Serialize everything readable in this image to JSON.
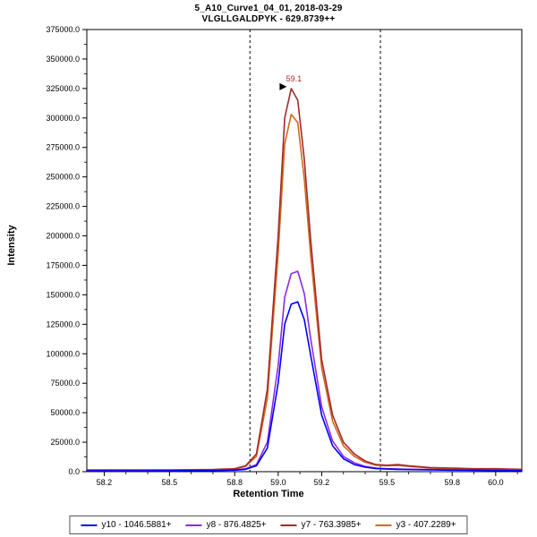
{
  "chart_data": {
    "type": "line",
    "title": "5_A10_Curve1_04_01, 2018-03-29",
    "subtitle": "VLGLLGALDPYK - 629.8739++",
    "xlabel": "Retention Time",
    "ylabel": "Intensity",
    "xlim": [
      58.12,
      60.12
    ],
    "ylim": [
      0,
      375000
    ],
    "grid": false,
    "legend_position": "bottom",
    "x_ticks": [
      58.2,
      58.5,
      58.8,
      59.0,
      59.2,
      59.5,
      59.8,
      60.0
    ],
    "x_tick_labels": [
      "58.2",
      "58.5",
      "58.8",
      "59.0",
      "59.2",
      "59.5",
      "59.8",
      "60.0"
    ],
    "x_minor_step": 0.1,
    "y_ticks": [
      0,
      25000,
      50000,
      75000,
      100000,
      125000,
      150000,
      175000,
      200000,
      225000,
      250000,
      275000,
      300000,
      325000,
      350000,
      375000
    ],
    "y_tick_labels": [
      "0.0",
      "25000.0",
      "50000.0",
      "75000.0",
      "100000.0",
      "125000.0",
      "150000.0",
      "175000.0",
      "200000.0",
      "225000.0",
      "250000.0",
      "275000.0",
      "300000.0",
      "325000.0",
      "350000.0",
      "375000.0"
    ],
    "y_minor_step": 12500,
    "peak_boundaries": [
      58.87,
      59.47
    ],
    "peak_annotation": {
      "label": "59.1",
      "x": 59.06,
      "y": 328000,
      "color": "#A52A2A"
    },
    "x": [
      58.12,
      58.3,
      58.5,
      58.7,
      58.8,
      58.85,
      58.9,
      58.95,
      59.0,
      59.03,
      59.06,
      59.09,
      59.12,
      59.15,
      59.2,
      59.25,
      59.3,
      59.35,
      59.4,
      59.45,
      59.5,
      59.55,
      59.6,
      59.7,
      59.8,
      59.9,
      60.0,
      60.12
    ],
    "series": [
      {
        "name": "y10",
        "legend_label": "y10 - 1046.5881+",
        "color": "#0000FF",
        "values": [
          700,
          700,
          800,
          1000,
          1300,
          2000,
          5000,
          20000,
          75000,
          125000,
          142000,
          144000,
          129000,
          98000,
          48000,
          22000,
          11000,
          6000,
          3800,
          2600,
          2200,
          2000,
          1800,
          1500,
          1300,
          1200,
          1000,
          900
        ]
      },
      {
        "name": "y8",
        "legend_label": "y8 - 876.4825+",
        "color": "#8A2BE2",
        "values": [
          800,
          800,
          900,
          1100,
          1500,
          2500,
          6000,
          25000,
          90000,
          148000,
          168000,
          170000,
          151000,
          112000,
          55000,
          26000,
          13000,
          7500,
          4500,
          3000,
          2500,
          2200,
          2000,
          1800,
          1500,
          1300,
          1200,
          1000
        ]
      },
      {
        "name": "y7",
        "legend_label": "y7 - 763.3985+",
        "color": "#A52A2A",
        "values": [
          1500,
          1500,
          1500,
          1800,
          2500,
          5000,
          15000,
          70000,
          200000,
          300000,
          325000,
          315000,
          265000,
          195000,
          95000,
          48000,
          25000,
          15000,
          9000,
          6000,
          5500,
          6000,
          5000,
          3500,
          3000,
          2500,
          2500,
          2000
        ]
      },
      {
        "name": "y3",
        "legend_label": "y3 - 407.2289+",
        "color": "#D2691E",
        "values": [
          1200,
          1200,
          1300,
          1600,
          2200,
          4500,
          13000,
          62000,
          185000,
          278000,
          303000,
          296000,
          248000,
          182000,
          88000,
          43000,
          22000,
          13000,
          8000,
          5500,
          5000,
          5200,
          4500,
          3000,
          2500,
          2200,
          2000,
          1800
        ]
      }
    ]
  }
}
